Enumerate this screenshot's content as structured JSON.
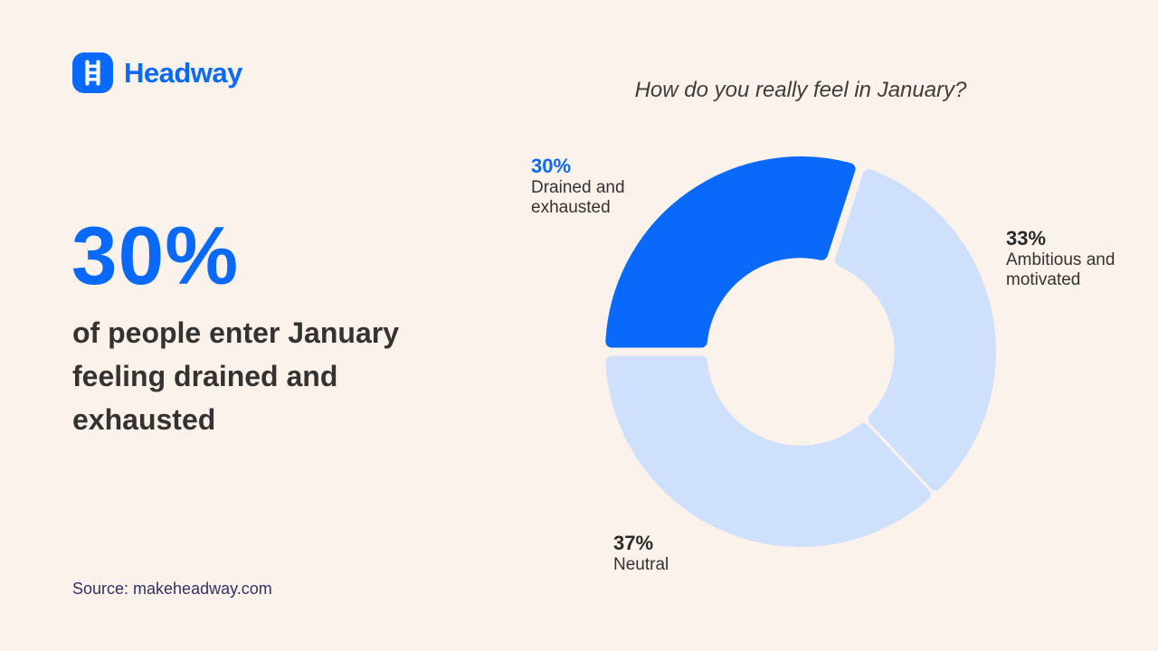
{
  "page": {
    "background_color": "#FCF2EC"
  },
  "header": {
    "logo": {
      "brand": "Headway",
      "brand_color": "#0969FB",
      "icon": "ladder-icon"
    },
    "title": "How do you really feel in January?"
  },
  "stat": {
    "value": "30%",
    "value_color": "#0969FB",
    "description": "of people enter January feeling drained and exhausted"
  },
  "source": {
    "text": "Source: makeheadway.com",
    "color": "#33315E"
  },
  "chart_data": {
    "type": "pie",
    "subtype": "donut",
    "title": "How do you really feel in January?",
    "categories": [
      "Drained and exhausted",
      "Ambitious and motivated",
      "Neutral"
    ],
    "values": [
      30,
      33,
      37
    ],
    "unit": "%",
    "colors": [
      "#0969FB",
      "#CFE0FC",
      "#CFE0FC"
    ],
    "start_angle_deg": 180,
    "direction": "clockwise",
    "inner_radius_ratio": 0.48,
    "legend_position": "around-chart",
    "labels": [
      {
        "pct": "30%",
        "pct_color": "#0969FB",
        "lines": [
          "Drained and",
          "exhausted"
        ]
      },
      {
        "pct": "33%",
        "pct_color": "#2B2927",
        "lines": [
          "Ambitious and",
          "motivated"
        ]
      },
      {
        "pct": "37%",
        "pct_color": "#2B2927",
        "lines": [
          "Neutral"
        ]
      }
    ]
  }
}
